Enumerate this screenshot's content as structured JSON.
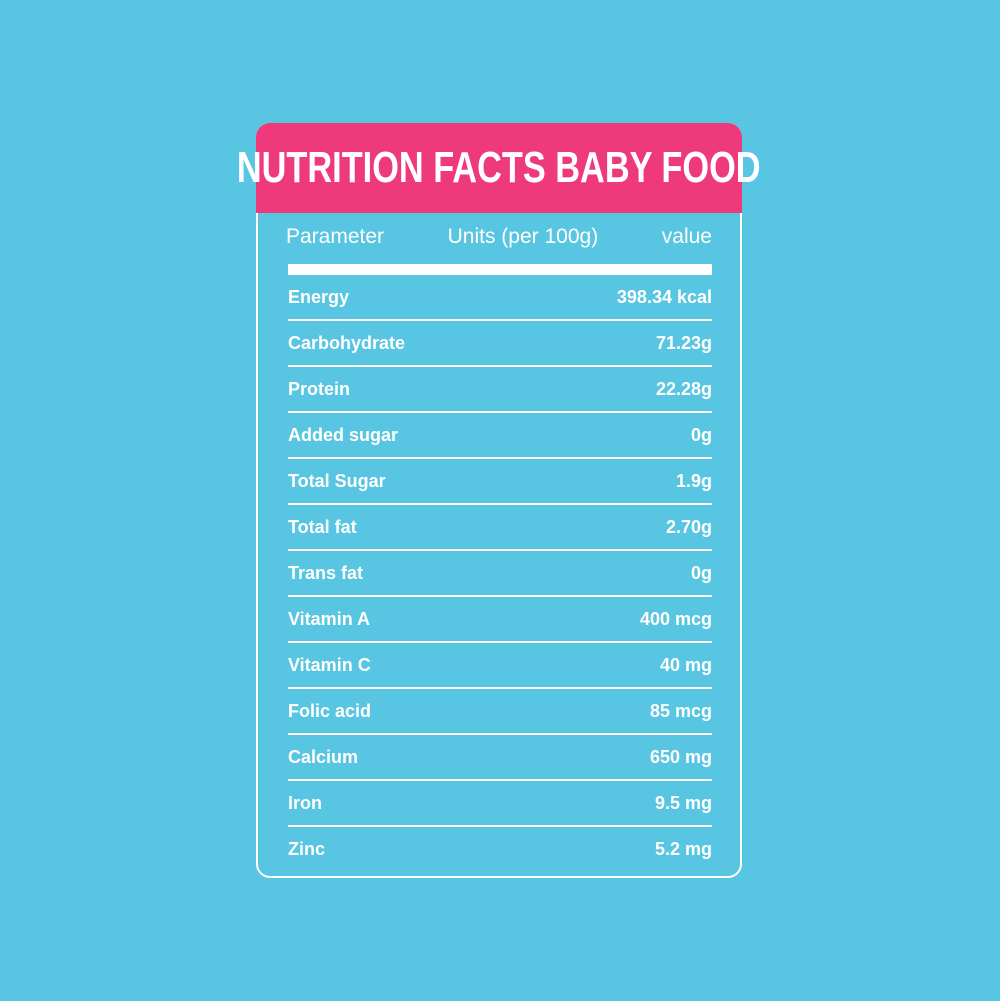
{
  "title": "NUTRITION FACTS BABY FOOD",
  "columns": {
    "parameter": "Parameter",
    "units": "Units (per 100g)",
    "value": "value"
  },
  "rows": [
    {
      "name": "Energy",
      "value": "398.34 kcal"
    },
    {
      "name": "Carbohydrate",
      "value": "71.23g"
    },
    {
      "name": "Protein",
      "value": "22.28g"
    },
    {
      "name": "Added sugar",
      "value": "0g"
    },
    {
      "name": "Total Sugar",
      "value": "1.9g"
    },
    {
      "name": "Total fat",
      "value": "2.70g"
    },
    {
      "name": "Trans fat",
      "value": "0g"
    },
    {
      "name": "Vitamin A",
      "value": "400 mcg"
    },
    {
      "name": "Vitamin C",
      "value": "40 mg"
    },
    {
      "name": "Folic acid",
      "value": "85 mcg"
    },
    {
      "name": "Calcium",
      "value": "650 mg"
    },
    {
      "name": "Iron",
      "value": "9.5 mg"
    },
    {
      "name": "Zinc",
      "value": "5.2 mg"
    }
  ],
  "colors": {
    "background": "#58c5e2",
    "header": "#ee3a7a",
    "text": "#ffffff"
  }
}
